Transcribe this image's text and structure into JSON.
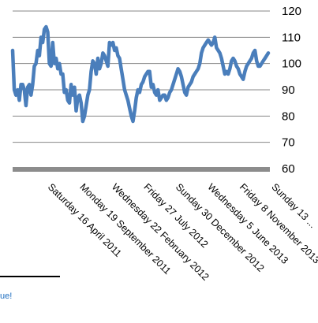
{
  "footer": {
    "text": "ue!"
  },
  "colors": {
    "line": "#4a7ebb",
    "grid": "#878787",
    "axis_base": "#8c8c8c",
    "footer_text": "#1f6fc0"
  },
  "chart_data": {
    "type": "line",
    "title": "",
    "xlabel": "",
    "ylabel": "",
    "ylim": [
      60,
      120
    ],
    "y_ticks": [
      60,
      70,
      80,
      90,
      100,
      110,
      120
    ],
    "y_axis_position": "right",
    "grid": true,
    "legend": "none",
    "x_tick_labels": [
      "Saturday 16 April 2011",
      "Monday 19 September 2011",
      "Wednesday 22 February 2012",
      "Friday 27 July 2012",
      "Sunday 30 December 2012",
      "Wednesday 5 June 2013",
      "Friday 8 November 2013",
      "Sunday 13 ..."
    ],
    "series": [
      {
        "values": [
          105,
          90,
          88,
          90,
          86,
          92,
          92,
          90,
          84,
          91,
          92,
          88,
          92,
          99,
          100,
          105,
          103,
          110,
          108,
          113,
          114,
          112,
          100,
          99,
          108,
          100,
          102,
          98,
          100,
          96,
          96,
          89,
          90,
          86,
          85,
          92,
          88,
          91,
          82,
          87,
          88,
          85,
          78,
          80,
          84,
          88,
          90,
          97,
          101,
          100,
          96,
          102,
          98,
          100,
          104,
          103,
          101,
          99,
          108,
          107,
          108,
          105,
          106,
          103,
          102,
          98,
          94,
          90,
          88,
          86,
          83,
          80,
          78,
          82,
          87,
          90,
          89,
          92,
          93,
          95,
          96,
          97,
          97,
          91,
          92,
          89,
          88,
          90,
          86,
          87,
          88,
          88,
          86,
          87,
          89,
          90,
          92,
          94,
          96,
          98,
          97,
          95,
          92,
          89,
          88,
          91,
          92,
          93,
          95,
          96,
          97,
          98,
          100,
          104,
          106,
          107,
          108,
          109,
          108,
          107,
          108,
          110,
          106,
          105,
          104,
          102,
          99,
          96,
          97,
          96,
          98,
          101,
          102,
          101,
          99,
          98,
          96,
          95,
          94,
          97,
          99,
          100,
          101,
          102,
          104,
          105,
          101,
          99,
          99,
          100,
          101,
          102,
          103,
          104
        ]
      }
    ]
  }
}
